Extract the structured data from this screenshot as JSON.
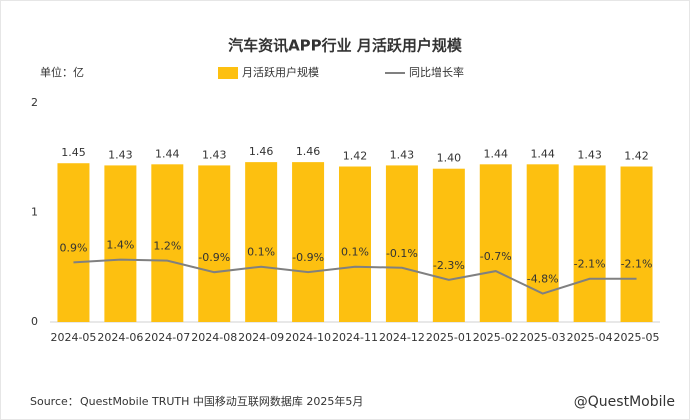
{
  "chart_data": {
    "type": "bar",
    "title": "汽车资讯APP行业 月活跃用户规模",
    "unit_label": "单位：亿",
    "categories": [
      "2024-05",
      "2024-06",
      "2024-07",
      "2024-08",
      "2024-09",
      "2024-10",
      "2024-11",
      "2024-12",
      "2025-01",
      "2025-02",
      "2025-03",
      "2025-04",
      "2025-05"
    ],
    "series": [
      {
        "name": "月活跃用户规模",
        "type": "bar",
        "color": "#FDC010",
        "values": [
          1.45,
          1.43,
          1.44,
          1.43,
          1.46,
          1.46,
          1.42,
          1.43,
          1.4,
          1.44,
          1.44,
          1.43,
          1.42
        ],
        "value_labels": [
          "1.45",
          "1.43",
          "1.44",
          "1.43",
          "1.46",
          "1.46",
          "1.42",
          "1.43",
          "1.40",
          "1.44",
          "1.44",
          "1.43",
          "1.42"
        ]
      },
      {
        "name": "同比增长率",
        "type": "line",
        "color": "#808080",
        "axis": "y2",
        "values": [
          0.9,
          1.4,
          1.2,
          -0.9,
          0.1,
          -0.9,
          0.1,
          -0.1,
          -2.3,
          -0.7,
          -4.8,
          -2.1,
          -2.1
        ],
        "value_labels": [
          "0.9%",
          "1.4%",
          "1.2%",
          "-0.9%",
          "0.1%",
          "-0.9%",
          "0.1%",
          "-0.1%",
          "-2.3%",
          "-0.7%",
          "-4.8%",
          "-2.1%",
          "-2.1%"
        ]
      }
    ],
    "ylim": [
      0,
      2
    ],
    "yticks": [
      0,
      1,
      2
    ],
    "y2lim": [
      -10,
      30
    ],
    "source": {
      "prefix": "Source：",
      "brand": "QuestMobile",
      "text": "TRUTH 中国移动互联网数据库 2025年5月"
    },
    "watermark": "@QuestMobile"
  }
}
